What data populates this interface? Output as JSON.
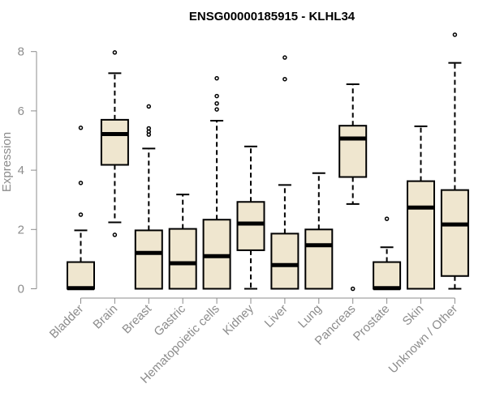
{
  "chart_data": {
    "type": "boxplot",
    "title": "ENSG00000185915 - KLHL34",
    "ylabel": "Expression",
    "ylim": [
      0,
      8.6
    ],
    "yticks": [
      0,
      2,
      4,
      6,
      8
    ],
    "colors": {
      "box_fill": "#efe6cf",
      "stroke": "#000000",
      "axis": "#8c8c8c"
    },
    "categories": [
      "Bladder",
      "Brain",
      "Breast",
      "Gastric",
      "Hematopoietic cells",
      "Kidney",
      "Liver",
      "Lung",
      "Pancreas",
      "Prostate",
      "Skin",
      "Unknown / Other"
    ],
    "boxes": [
      {
        "q1": 0.0,
        "median": 0.02,
        "q3": 0.9,
        "whisker_low": 0.0,
        "whisker_high": 1.97,
        "outliers": [
          2.5,
          3.57,
          5.43
        ]
      },
      {
        "q1": 4.18,
        "median": 5.22,
        "q3": 5.7,
        "whisker_low": 2.24,
        "whisker_high": 7.27,
        "outliers": [
          1.82,
          7.97
        ]
      },
      {
        "q1": 0.0,
        "median": 1.21,
        "q3": 1.97,
        "whisker_low": 0.0,
        "whisker_high": 4.73,
        "outliers": [
          5.2,
          5.3,
          5.41,
          6.15
        ]
      },
      {
        "q1": 0.0,
        "median": 0.86,
        "q3": 2.02,
        "whisker_low": 0.0,
        "whisker_high": 3.18,
        "outliers": []
      },
      {
        "q1": 0.0,
        "median": 1.1,
        "q3": 2.33,
        "whisker_low": 0.0,
        "whisker_high": 5.67,
        "outliers": [
          6.05,
          6.25,
          6.5,
          7.1
        ]
      },
      {
        "q1": 1.3,
        "median": 2.2,
        "q3": 2.93,
        "whisker_low": 0.0,
        "whisker_high": 4.8,
        "outliers": []
      },
      {
        "q1": 0.0,
        "median": 0.8,
        "q3": 1.86,
        "whisker_low": 0.0,
        "whisker_high": 3.5,
        "outliers": [
          7.07,
          7.8
        ]
      },
      {
        "q1": 0.0,
        "median": 1.47,
        "q3": 2.0,
        "whisker_low": 0.0,
        "whisker_high": 3.9,
        "outliers": []
      },
      {
        "q1": 3.77,
        "median": 5.07,
        "q3": 5.5,
        "whisker_low": 2.86,
        "whisker_high": 6.9,
        "outliers": [
          0.0
        ]
      },
      {
        "q1": 0.0,
        "median": 0.02,
        "q3": 0.9,
        "whisker_low": 0.0,
        "whisker_high": 1.4,
        "outliers": [
          2.36
        ]
      },
      {
        "q1": 0.0,
        "median": 2.74,
        "q3": 3.63,
        "whisker_low": 0.0,
        "whisker_high": 5.48,
        "outliers": []
      },
      {
        "q1": 0.43,
        "median": 2.17,
        "q3": 3.33,
        "whisker_low": 0.0,
        "whisker_high": 7.62,
        "outliers": [
          8.57
        ]
      }
    ]
  }
}
